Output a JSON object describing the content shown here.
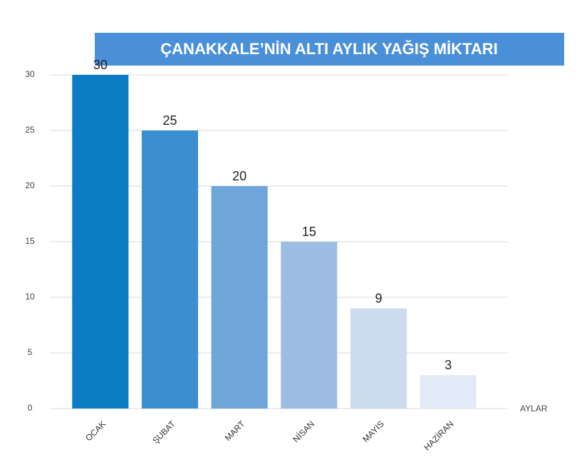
{
  "chart_data": {
    "type": "bar",
    "title": "ÇANAKKALE’NİN ALTI AYLIK YAĞIŞ MİKTARI",
    "x_label": "AYLAR",
    "categories": [
      "OCAK",
      "ŞUBAT",
      "MART",
      "NİSAN",
      "MAYIS",
      "HAZİRAN"
    ],
    "values": [
      30,
      25,
      20,
      15,
      9,
      3
    ],
    "colors": [
      "#0b7dc5",
      "#3a8fd1",
      "#6ea6d9",
      "#9dbde5",
      "#cbdcef",
      "#e1eaf6"
    ],
    "ylim": [
      0,
      30
    ],
    "yticks": [
      0,
      5,
      10,
      15,
      20,
      25,
      30
    ],
    "grid": true
  }
}
